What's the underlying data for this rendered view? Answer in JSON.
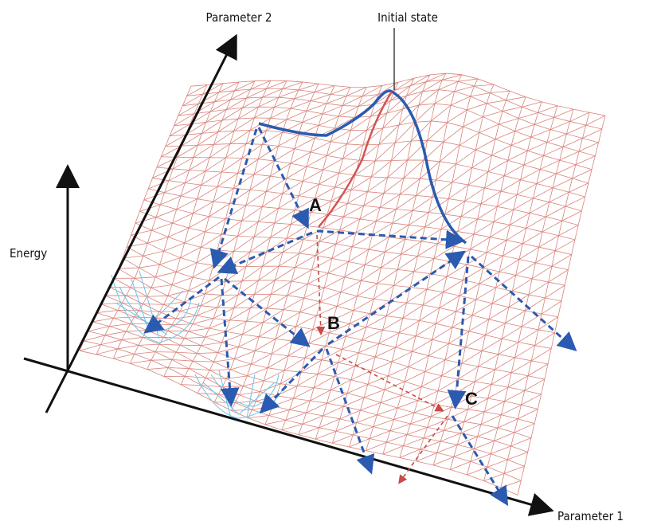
{
  "axes": {
    "parameter_1": "Parameter 1",
    "parameter_2": "Parameter 2",
    "energy": "Energy"
  },
  "annotations": {
    "initial_state": "Initial state"
  },
  "points": {
    "a": "A",
    "b": "B",
    "c": "C"
  }
}
